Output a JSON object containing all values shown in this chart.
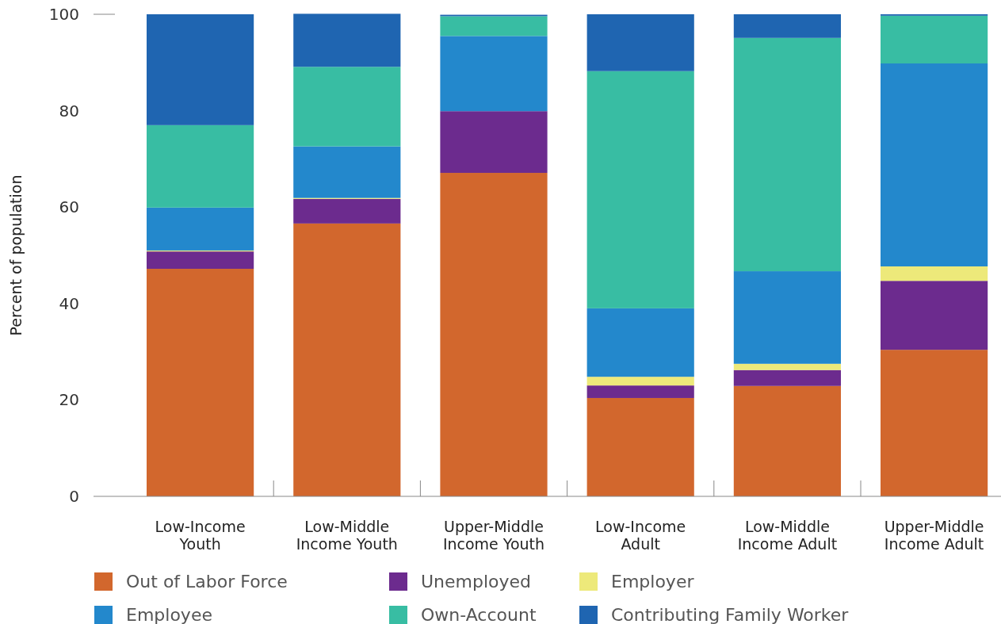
{
  "chart_data": {
    "type": "bar",
    "stacked": true,
    "ylabel": "Percent of population",
    "categories": [
      "Low-Income Youth",
      "Low-Middle Income Youth",
      "Upper-Middle Income Youth",
      "Low-Income Adult",
      "Low-Middle Income Adult",
      "Upper-Middle Income Adult"
    ],
    "series": [
      {
        "name": "Out of Labor Force",
        "color": "#d2672d",
        "values": [
          47.2,
          56.6,
          67.1,
          20.4,
          22.9,
          30.4
        ]
      },
      {
        "name": "Unemployed",
        "color": "#6c2b8e",
        "values": [
          3.6,
          5.1,
          12.8,
          2.6,
          3.3,
          14.3
        ]
      },
      {
        "name": "Employer",
        "color": "#ede97a",
        "values": [
          0.2,
          0.2,
          null,
          1.8,
          1.3,
          3.0
        ]
      },
      {
        "name": "Employee",
        "color": "#2388cc",
        "values": [
          8.9,
          10.7,
          15.6,
          14.2,
          19.2,
          42.1
        ]
      },
      {
        "name": "Own-Account",
        "color": "#38bda3",
        "values": [
          17.1,
          16.5,
          4.1,
          49.2,
          48.4,
          9.9
        ]
      },
      {
        "name": "Contributing Family Worker",
        "color": "#1f65b1",
        "values": [
          23.0,
          11.0,
          0.3,
          11.8,
          4.9,
          0.3
        ]
      }
    ],
    "ylim": [
      0,
      100
    ],
    "yticks": [
      0,
      20,
      40,
      60,
      80,
      100
    ],
    "legend": "bottom",
    "grid": false
  }
}
